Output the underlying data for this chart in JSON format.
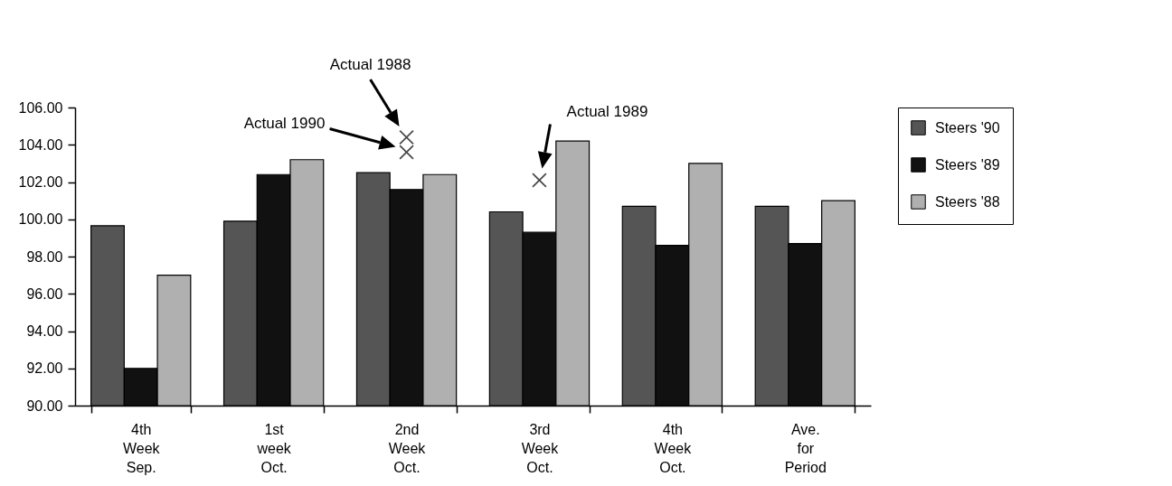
{
  "chart_data": {
    "type": "bar",
    "categories": [
      "4th Week Sep.",
      "1st week Oct.",
      "2nd Week Oct.",
      "3rd Week Oct.",
      "4th Week Oct.",
      "Ave. for Period"
    ],
    "series": [
      {
        "name": "Steers '90",
        "color": "#555555",
        "values": [
          99.65,
          99.9,
          102.5,
          100.4,
          100.7,
          100.7
        ]
      },
      {
        "name": "Steers '89",
        "color": "#111111",
        "values": [
          92.0,
          102.4,
          101.6,
          99.3,
          98.6,
          98.7
        ]
      },
      {
        "name": "Steers '88",
        "color": "#b0b0b0",
        "values": [
          97.0,
          103.2,
          102.4,
          104.2,
          103.0,
          101.0
        ]
      },
      {
        "type": "scatter",
        "color": "#000000",
        "marker": "cross",
        "x": [
          "2nd Week Oct."
        ],
        "values": [
          103.6
        ]
      },
      {
        "type": "scatter",
        "color": "#000000",
        "marker": "cross",
        "x": [
          "2nd Week Oct."
        ],
        "values": [
          104.4
        ]
      },
      {
        "type": "scatter",
        "color": "#000000",
        "marker": "cross",
        "x": [
          "3rd Week Oct."
        ],
        "values": [
          102.1
        ]
      }
    ],
    "ylim": [
      90,
      106
    ],
    "yticks": [
      {
        "value": 90,
        "label": "90.00"
      },
      {
        "value": 92,
        "label": "92.00"
      },
      {
        "value": 94,
        "label": "94.00"
      },
      {
        "value": 96,
        "label": "96.00"
      },
      {
        "value": 98,
        "label": "98.00"
      },
      {
        "value": 100,
        "label": "100.00"
      },
      {
        "value": 102,
        "label": "102.00"
      },
      {
        "value": 104,
        "label": "104.00"
      },
      {
        "value": 106,
        "label": "106.00"
      }
    ],
    "annotations": [
      "Actual 1990",
      "Actual 1988",
      "Actual 1989"
    ],
    "legend": "right",
    "grid": false
  }
}
